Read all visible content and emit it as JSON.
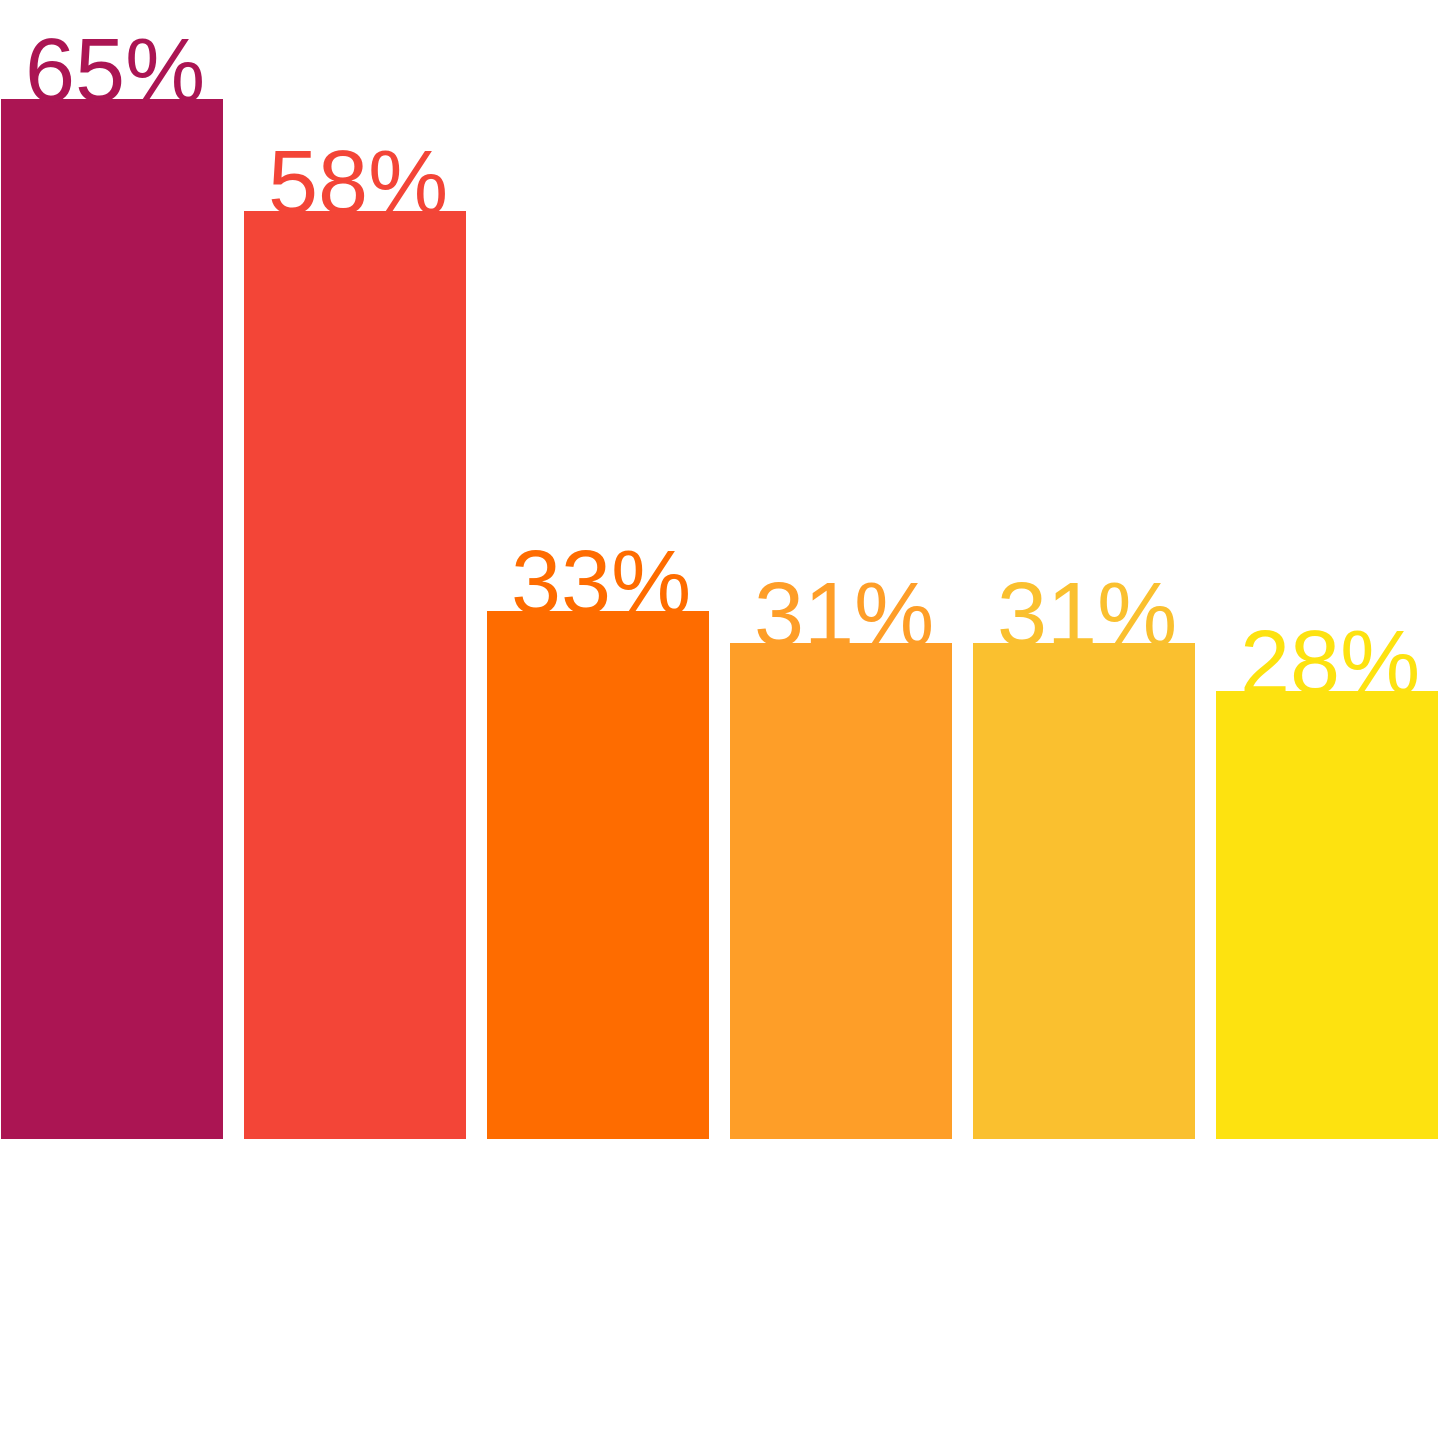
{
  "chart_data": {
    "type": "bar",
    "categories": [
      "",
      "",
      "",
      "",
      "",
      ""
    ],
    "values": [
      65,
      58,
      33,
      31,
      31,
      28
    ],
    "data_labels": [
      "65%",
      "58%",
      "33%",
      "31%",
      "31%",
      "28%"
    ],
    "colors": [
      "#ab1553",
      "#f34537",
      "#fe6c00",
      "#fe9e28",
      "#fac02f",
      "#fde210"
    ],
    "ylim": [
      0,
      65
    ],
    "title": "",
    "xlabel": "",
    "ylabel": "",
    "grid": false,
    "legend": "none",
    "value_unit": "%"
  }
}
